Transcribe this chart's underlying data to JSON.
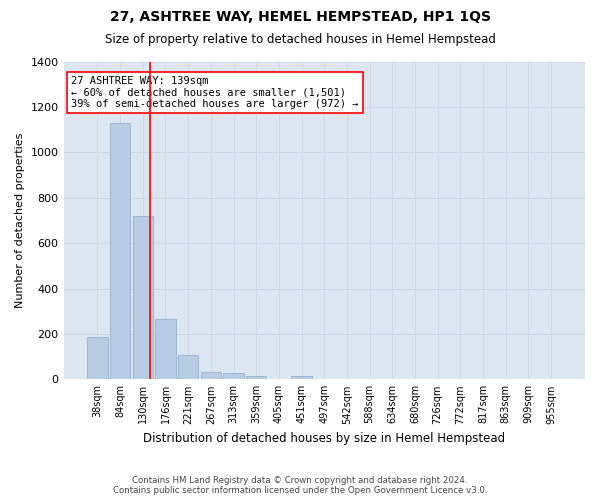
{
  "title": "27, ASHTREE WAY, HEMEL HEMPSTEAD, HP1 1QS",
  "subtitle": "Size of property relative to detached houses in Hemel Hempstead",
  "xlabel": "Distribution of detached houses by size in Hemel Hempstead",
  "ylabel": "Number of detached properties",
  "footer_line1": "Contains HM Land Registry data © Crown copyright and database right 2024.",
  "footer_line2": "Contains public sector information licensed under the Open Government Licence v3.0.",
  "bin_labels": [
    "38sqm",
    "84sqm",
    "130sqm",
    "176sqm",
    "221sqm",
    "267sqm",
    "313sqm",
    "359sqm",
    "405sqm",
    "451sqm",
    "497sqm",
    "542sqm",
    "588sqm",
    "634sqm",
    "680sqm",
    "726sqm",
    "772sqm",
    "817sqm",
    "863sqm",
    "909sqm",
    "955sqm"
  ],
  "bar_values": [
    185,
    1130,
    720,
    265,
    105,
    30,
    27,
    15,
    0,
    15,
    0,
    0,
    0,
    0,
    0,
    0,
    0,
    0,
    0,
    0,
    0
  ],
  "bar_color": "#b8cce4",
  "bar_edge_color": "#8aaac8",
  "grid_color": "#d0d8e8",
  "background_color": "#dce6f1",
  "annotation_line1": "27 ASHTREE WAY: 139sqm",
  "annotation_line2": "← 60% of detached houses are smaller (1,501)",
  "annotation_line3": "39% of semi-detached houses are larger (972) →",
  "red_line_x": 2.3,
  "ylim": [
    0,
    1400
  ],
  "yticks": [
    0,
    200,
    400,
    600,
    800,
    1000,
    1200,
    1400
  ]
}
